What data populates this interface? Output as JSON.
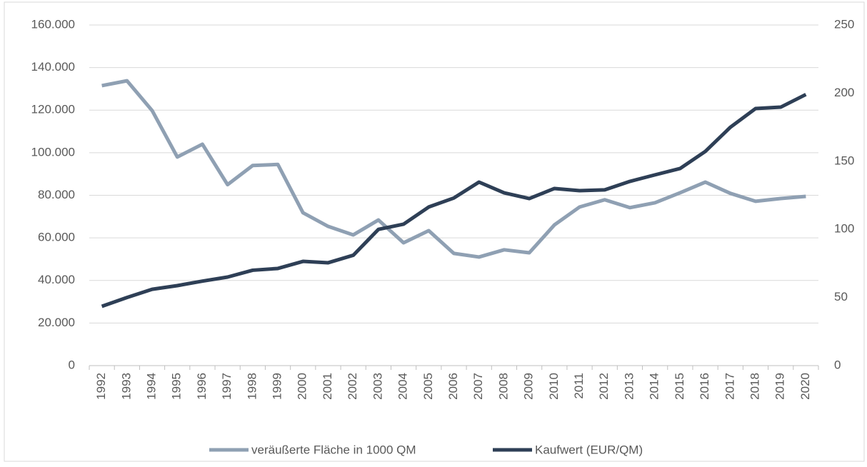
{
  "chart_data": {
    "type": "line",
    "categories": [
      "1992",
      "1993",
      "1994",
      "1995",
      "1996",
      "1997",
      "1998",
      "1999",
      "2000",
      "2001",
      "2002",
      "2003",
      "2004",
      "2005",
      "2006",
      "2007",
      "2008",
      "2009",
      "2010",
      "2011",
      "2012",
      "2013",
      "2014",
      "2015",
      "2016",
      "2017",
      "2018",
      "2019",
      "2020"
    ],
    "series": [
      {
        "name": "veräußerte Fläche in 1000 QM",
        "color": "#8fa0b3",
        "values": [
          131500,
          133800,
          119800,
          98000,
          104000,
          85000,
          94000,
          94500,
          71800,
          65400,
          61400,
          68400,
          57700,
          63400,
          52700,
          51000,
          54400,
          53000,
          66100,
          74500,
          77900,
          74200,
          76500,
          81200,
          86200,
          80900,
          77200,
          78500,
          79500
        ]
      },
      {
        "name": "Kaufwert (EUR/QM)",
        "color": "#2e3f56",
        "axis": "y2",
        "values": [
          43.5,
          50,
          56,
          58.7,
          62,
          65,
          70,
          71.3,
          76.5,
          75.5,
          81,
          100,
          103.8,
          116.4,
          123,
          134.7,
          126.8,
          122.6,
          130,
          128.4,
          129,
          135.2,
          140,
          144.7,
          157.2,
          175,
          188.7,
          189.7,
          199
        ]
      }
    ],
    "ylim": [
      0,
      160000
    ],
    "yticks": [
      0,
      {
        "value": 20000,
        "label": "20.000"
      },
      {
        "value": 40000,
        "label": "40.000"
      },
      {
        "value": 60000,
        "label": "60.000"
      },
      {
        "value": 80000,
        "label": "80.000"
      },
      {
        "value": 100000,
        "label": "100.000"
      },
      {
        "value": 120000,
        "label": "120.000"
      },
      {
        "value": 140000,
        "label": "140.000"
      },
      {
        "value": 160000,
        "label": "160.000"
      }
    ],
    "y2lim": [
      0,
      250
    ],
    "y2ticks": [
      0,
      50,
      100,
      150,
      200,
      250
    ],
    "grid": true,
    "legend": "bottom"
  }
}
